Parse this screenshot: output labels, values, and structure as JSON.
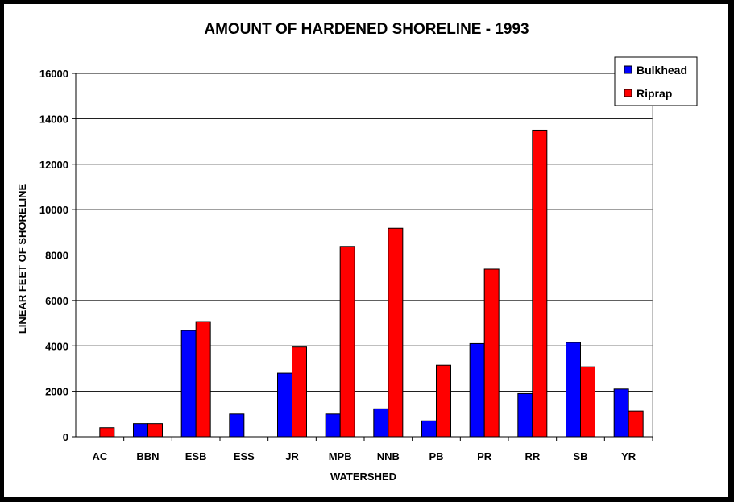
{
  "chart_data": {
    "type": "bar",
    "title": "AMOUNT OF HARDENED SHORELINE - 1993",
    "xlabel": "WATERSHED",
    "ylabel": "LINEAR FEET OF SHORELINE",
    "categories": [
      "AC",
      "BBN",
      "ESB",
      "ESS",
      "JR",
      "MPB",
      "NNB",
      "PB",
      "PR",
      "RR",
      "SB",
      "YR"
    ],
    "series": [
      {
        "name": "Bulkhead",
        "color": "#0000ff",
        "values": [
          0,
          580,
          4680,
          1000,
          2800,
          1000,
          1230,
          700,
          4100,
          1900,
          4150,
          2100
        ]
      },
      {
        "name": "Riprap",
        "color": "#ff0000",
        "values": [
          400,
          580,
          5070,
          0,
          3950,
          8380,
          9180,
          3150,
          7380,
          13500,
          3080,
          1130
        ]
      }
    ],
    "ylim": [
      0,
      16000
    ],
    "yticks": [
      0,
      2000,
      4000,
      6000,
      8000,
      10000,
      12000,
      14000,
      16000
    ],
    "grid": true,
    "legend": "top-right"
  }
}
